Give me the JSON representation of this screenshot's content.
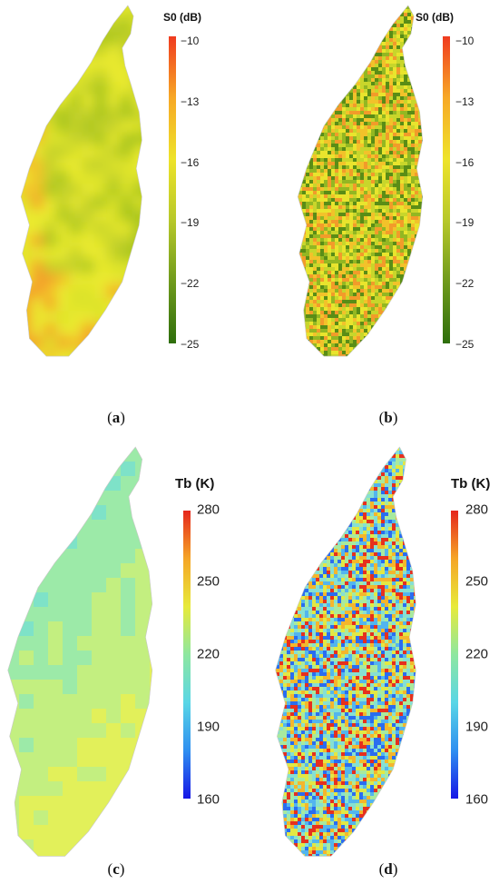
{
  "panels": [
    {
      "id": "a",
      "caption_letter": "a",
      "colorbar": {
        "title": "S0 (dB)",
        "ticks": [
          "−10",
          "−13",
          "−16",
          "−19",
          "−22",
          "−25"
        ],
        "min": -25,
        "max": -10,
        "colors": [
          "#2e6e0c",
          "#6f9a1c",
          "#b7c82a",
          "#eee32a",
          "#f7a826",
          "#f03b1f"
        ]
      },
      "map": {
        "style": "smooth",
        "palette": [
          "#a7c51f",
          "#c4d22a",
          "#dde32c",
          "#eaea2d",
          "#f3c22a",
          "#f4a02a"
        ]
      }
    },
    {
      "id": "b",
      "caption_letter": "b",
      "colorbar": {
        "title": "S0 (dB)",
        "ticks": [
          "−10",
          "−13",
          "−16",
          "−19",
          "−22",
          "−25"
        ],
        "min": -25,
        "max": -10,
        "colors": [
          "#2e6e0c",
          "#6f9a1c",
          "#b7c82a",
          "#eee32a",
          "#f7a826",
          "#f03b1f"
        ]
      },
      "map": {
        "style": "speckled",
        "palette": [
          "#5a8d16",
          "#93b722",
          "#c8d62b",
          "#e9e42d",
          "#f2c22a",
          "#f29b2a"
        ]
      }
    },
    {
      "id": "c",
      "caption_letter": "c",
      "colorbar": {
        "title": "Tb (K)",
        "ticks": [
          "280",
          "250",
          "220",
          "190",
          "160"
        ],
        "min": 160,
        "max": 280,
        "colors": [
          "#1616e6",
          "#2f8ff0",
          "#59d6e6",
          "#8ee7a0",
          "#e7ea3a",
          "#f5a526",
          "#e5261c"
        ]
      },
      "map": {
        "style": "blocky",
        "palette": [
          "#63d8e4",
          "#7ee2c8",
          "#9ceaa8",
          "#c3ef80",
          "#e2f05a",
          "#eeee3e"
        ]
      }
    },
    {
      "id": "d",
      "caption_letter": "d",
      "colorbar": {
        "title": "Tb (K)",
        "ticks": [
          "280",
          "250",
          "220",
          "190",
          "160"
        ],
        "min": 160,
        "max": 280,
        "colors": [
          "#1616e6",
          "#2f8ff0",
          "#59d6e6",
          "#8ee7a0",
          "#e7ea3a",
          "#f5a526",
          "#e5261c"
        ]
      },
      "map": {
        "style": "noisy",
        "palette": [
          "#2a6df0",
          "#53b5ee",
          "#86e0d2",
          "#a8ea9e",
          "#e2e844",
          "#f4b62c",
          "#e6301e"
        ]
      }
    }
  ]
}
